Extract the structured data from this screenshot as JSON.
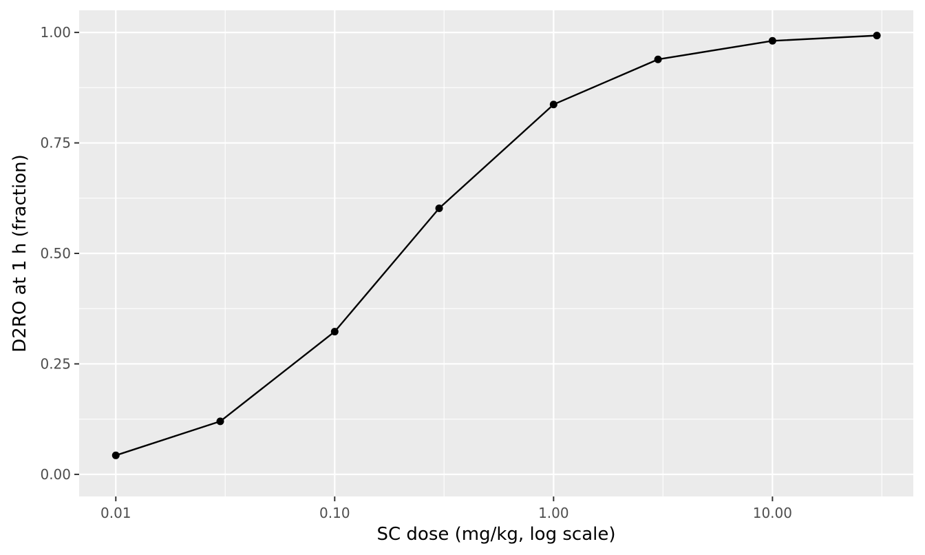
{
  "chart_data": {
    "type": "line",
    "title": "",
    "xlabel": "SC dose (mg/kg, log scale)",
    "ylabel": "D2RO at 1 h (fraction)",
    "x_scale": "log10",
    "x": [
      0.01,
      0.03,
      0.1,
      0.3,
      1,
      3,
      10,
      30
    ],
    "series": [
      {
        "name": "",
        "color": "#000000",
        "markers": true,
        "values": [
          0.043,
          0.12,
          0.323,
          0.602,
          0.837,
          0.939,
          0.981,
          0.993
        ]
      }
    ],
    "xlim": [
      0.0068,
      44
    ],
    "ylim": [
      -0.05,
      1.05
    ],
    "x_ticks": [
      {
        "value": 0.01,
        "label": "0.01"
      },
      {
        "value": 0.1,
        "label": "0.10"
      },
      {
        "value": 1,
        "label": "1.00"
      },
      {
        "value": 10,
        "label": "10.00"
      }
    ],
    "x_minor_ticks": [
      0.0316,
      0.316,
      3.16,
      31.6
    ],
    "y_ticks": [
      {
        "value": 0,
        "label": "0.00"
      },
      {
        "value": 0.25,
        "label": "0.25"
      },
      {
        "value": 0.5,
        "label": "0.50"
      },
      {
        "value": 0.75,
        "label": "0.75"
      },
      {
        "value": 1,
        "label": "1.00"
      }
    ],
    "y_minor_ticks": [
      0.125,
      0.375,
      0.625,
      0.875
    ],
    "grid": true,
    "legend": "none",
    "panel_color": "#ebebeb",
    "grid_color": "#ffffff",
    "tick_color": "#333333"
  }
}
